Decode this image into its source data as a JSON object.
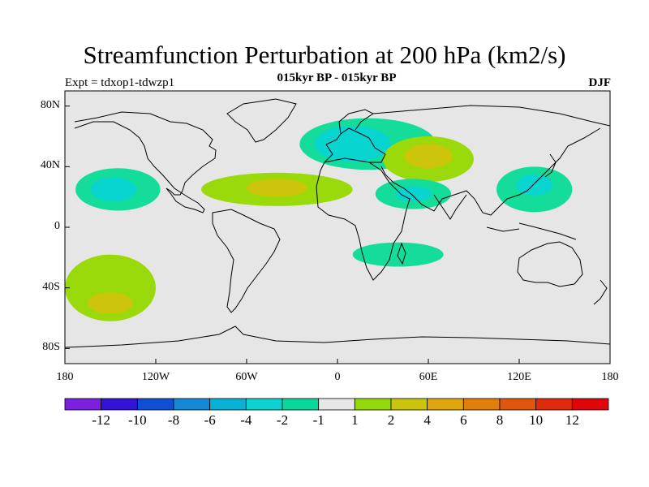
{
  "title": "Streamfunction Perturbation at 200 hPa (km2/s)",
  "subtitle": "015kyr BP - 015kyr BP",
  "left_string": "Expt = tdxop1-tdwzp1",
  "right_string": "DJF",
  "lat_labels": [
    "80N",
    "40N",
    "0",
    "40S",
    "80S"
  ],
  "lon_labels": [
    "180",
    "120W",
    "60W",
    "0",
    "60E",
    "120E",
    "180"
  ],
  "colorbar": {
    "labels": [
      "-12",
      "-10",
      "-8",
      "-6",
      "-4",
      "-2",
      "-1",
      "1",
      "2",
      "4",
      "6",
      "8",
      "10",
      "12"
    ],
    "colors": [
      "#7b1fe0",
      "#3412d8",
      "#0f4fd6",
      "#1388d6",
      "#05b1d6",
      "#0ad2cf",
      "#0ad79a",
      "#e6e6e6",
      "#95d90a",
      "#c9c50a",
      "#dfa50a",
      "#e17f0a",
      "#e0560a",
      "#e02a0a",
      "#e0050a"
    ]
  },
  "colors": {
    "ocean_background": "#e6e6e6",
    "neg_weak": "#14dd9c",
    "neg_mid": "#08d4d0",
    "pos_weak": "#9bda0a",
    "pos_mid": "#ccc50a",
    "pos_strong": "#dfa50a"
  },
  "map": {
    "projection": "cylindrical equidistant",
    "lat_range": [
      -90,
      90
    ],
    "lon_range": [
      -180,
      180
    ],
    "anomalies": [
      {
        "name": "north-atlantic-low",
        "lon": 20,
        "lat": 55,
        "rx": 45,
        "ry": 17,
        "level": "neg_weak"
      },
      {
        "name": "north-atlantic-low-core",
        "lon": 10,
        "lat": 55,
        "rx": 25,
        "ry": 12,
        "level": "neg_mid"
      },
      {
        "name": "eurasia-high",
        "lon": 60,
        "lat": 45,
        "rx": 30,
        "ry": 15,
        "level": "pos_weak"
      },
      {
        "name": "eurasia-high-core",
        "lon": 60,
        "lat": 47,
        "rx": 16,
        "ry": 8,
        "level": "pos_mid"
      },
      {
        "name": "north-pacific-low",
        "lon": -145,
        "lat": 25,
        "rx": 28,
        "ry": 14,
        "level": "neg_weak"
      },
      {
        "name": "north-pacific-low-core",
        "lon": -148,
        "lat": 25,
        "rx": 15,
        "ry": 8,
        "level": "neg_mid"
      },
      {
        "name": "subtropical-atlantic-high",
        "lon": -40,
        "lat": 25,
        "rx": 50,
        "ry": 11,
        "level": "pos_weak"
      },
      {
        "name": "subtropical-atlantic-high-core",
        "lon": -40,
        "lat": 26,
        "rx": 20,
        "ry": 6,
        "level": "pos_mid"
      },
      {
        "name": "middle-east-low",
        "lon": 50,
        "lat": 22,
        "rx": 25,
        "ry": 10,
        "level": "neg_weak"
      },
      {
        "name": "middle-east-low-core",
        "lon": 50,
        "lat": 22,
        "rx": 12,
        "ry": 5,
        "level": "neg_mid"
      },
      {
        "name": "east-asia-low",
        "lon": 130,
        "lat": 25,
        "rx": 25,
        "ry": 15,
        "level": "neg_weak"
      },
      {
        "name": "east-asia-low-core",
        "lon": 130,
        "lat": 28,
        "rx": 12,
        "ry": 7,
        "level": "neg_mid"
      },
      {
        "name": "south-pacific-high",
        "lon": -150,
        "lat": -40,
        "rx": 30,
        "ry": 22,
        "level": "pos_weak"
      },
      {
        "name": "south-pacific-high-core",
        "lon": -150,
        "lat": -50,
        "rx": 15,
        "ry": 7,
        "level": "pos_mid"
      },
      {
        "name": "south-indian-low",
        "lon": 40,
        "lat": -18,
        "rx": 30,
        "ry": 8,
        "level": "neg_weak"
      }
    ]
  }
}
